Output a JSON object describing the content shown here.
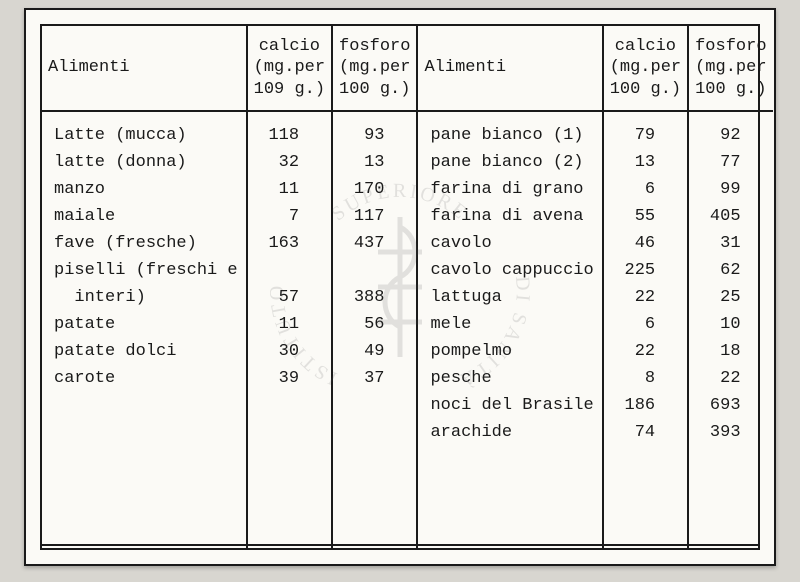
{
  "document": {
    "type": "table",
    "font_family": "Courier New",
    "background_color": "#fbfaf6",
    "page_background": "#d8d6d0",
    "border_color": "#1a1a1a",
    "text_color": "#1a1a1a",
    "header_fontsize": 17,
    "cell_fontsize": 17,
    "columns": [
      {
        "label": "Alimenti",
        "align": "left",
        "width_pct": 24
      },
      {
        "label": "calcio\n(mg.per\n109 g.)",
        "align": "center",
        "width_pct": 11
      },
      {
        "label": "fosforo\n(mg.per\n100 g.)",
        "align": "center",
        "width_pct": 11
      },
      {
        "label": "Alimenti",
        "align": "left",
        "width_pct": 24
      },
      {
        "label": "calcio\n(mg.per\n100 g.)",
        "align": "center",
        "width_pct": 11
      },
      {
        "label": "fosforo\n(mg.per\n100 g.)",
        "align": "center",
        "width_pct": 11
      }
    ],
    "left_rows": [
      {
        "food": "Latte (mucca)",
        "calcio": "118",
        "fosforo": "93"
      },
      {
        "food": "latte (donna)",
        "calcio": "32",
        "fosforo": "13"
      },
      {
        "food": "manzo",
        "calcio": "11",
        "fosforo": "170"
      },
      {
        "food": "maiale",
        "calcio": "7",
        "fosforo": "117"
      },
      {
        "food": "fave (fresche)",
        "calcio": "163",
        "fosforo": "437"
      },
      {
        "food": "piselli (freschi e",
        "calcio": "",
        "fosforo": ""
      },
      {
        "food": "  interi)",
        "calcio": "57",
        "fosforo": "388"
      },
      {
        "food": "patate",
        "calcio": "11",
        "fosforo": "56"
      },
      {
        "food": "patate dolci",
        "calcio": "30",
        "fosforo": "49"
      },
      {
        "food": "carote",
        "calcio": "39",
        "fosforo": "37"
      }
    ],
    "right_rows": [
      {
        "food": "pane bianco (1)",
        "calcio": "79",
        "fosforo": "92"
      },
      {
        "food": "pane bianco (2)",
        "calcio": "13",
        "fosforo": "77"
      },
      {
        "food": "farina di grano",
        "calcio": "6",
        "fosforo": "99"
      },
      {
        "food": "farina di avena",
        "calcio": "55",
        "fosforo": "405"
      },
      {
        "food": "cavolo",
        "calcio": "46",
        "fosforo": "31"
      },
      {
        "food": "cavolo cappuccio",
        "calcio": "225",
        "fosforo": "62"
      },
      {
        "food": "lattuga",
        "calcio": "22",
        "fosforo": "25"
      },
      {
        "food": "mele",
        "calcio": "6",
        "fosforo": "10"
      },
      {
        "food": "pompelmo",
        "calcio": "22",
        "fosforo": "18"
      },
      {
        "food": "pesche",
        "calcio": "8",
        "fosforo": "22"
      },
      {
        "food": "noci del Brasile",
        "calcio": "186",
        "fosforo": "693"
      },
      {
        "food": "arachide",
        "calcio": "74",
        "fosforo": "393"
      }
    ],
    "watermark": {
      "text_top": "SUPERIORE",
      "text_left": "ISTITUTO",
      "text_right": "DI SANITÀ",
      "color": "#7a7a7a"
    }
  }
}
